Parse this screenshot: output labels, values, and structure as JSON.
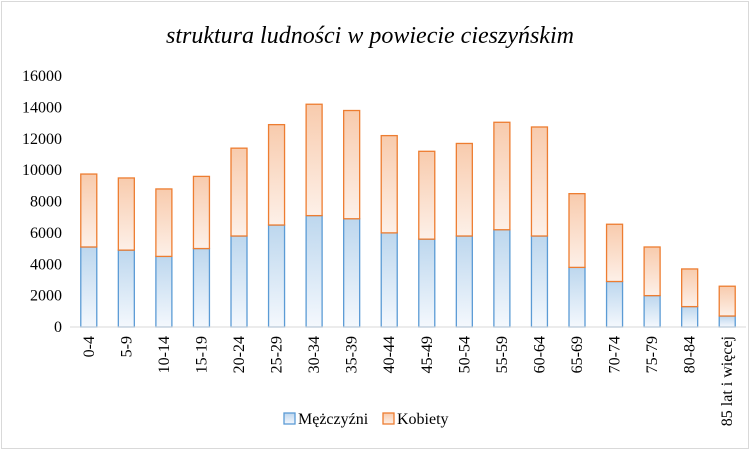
{
  "chart_data": {
    "type": "bar",
    "stacked": true,
    "title": "struktura ludności w powiecie cieszyńskim",
    "xlabel": "",
    "ylabel": "",
    "ylim": [
      0,
      16000
    ],
    "yticks": [
      0,
      2000,
      4000,
      6000,
      8000,
      10000,
      12000,
      14000,
      16000
    ],
    "grid": false,
    "legend_position": "bottom",
    "categories": [
      "0-4",
      "5-9",
      "10-14",
      "15-19",
      "20-24",
      "25-29",
      "30-34",
      "35-39",
      "40-44",
      "45-49",
      "50-54",
      "55-59",
      "60-64",
      "65-69",
      "70-74",
      "75-79",
      "80-84",
      "85 lat i więcej"
    ],
    "series": [
      {
        "name": "Mężczyźni",
        "color": "#5b9bd5",
        "values": [
          5100,
          4900,
          4500,
          5000,
          5800,
          6500,
          7100,
          6900,
          6000,
          5600,
          5800,
          6200,
          5800,
          3800,
          2900,
          2000,
          1300,
          700
        ]
      },
      {
        "name": "Kobiety",
        "color": "#ed7d31",
        "values": [
          4650,
          4600,
          4300,
          4600,
          5600,
          6400,
          7100,
          6900,
          6200,
          5600,
          5900,
          6850,
          6950,
          4700,
          3650,
          3100,
          2400,
          1900
        ]
      }
    ]
  }
}
